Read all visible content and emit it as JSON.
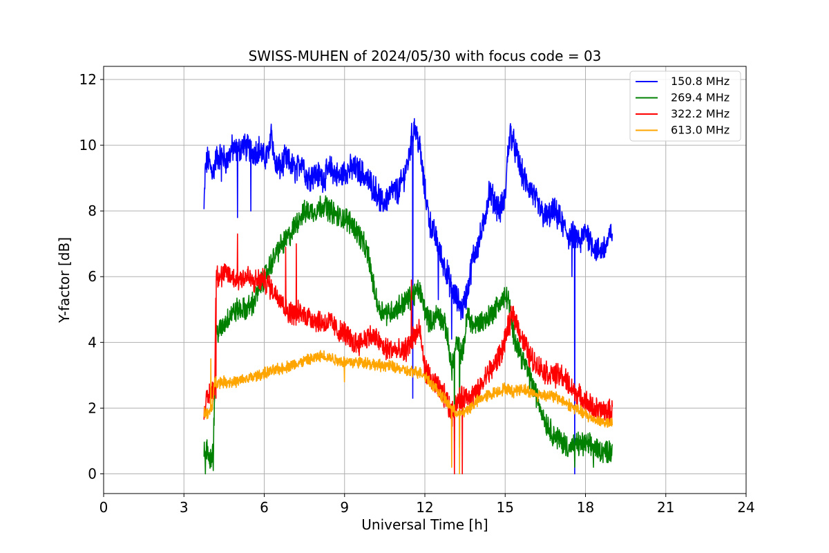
{
  "chart_data": {
    "type": "line",
    "title": "SWISS-MUHEN of 2024/05/30 with focus code = 03",
    "xlabel": "Universal Time [h]",
    "ylabel": "Y-factor [dB]",
    "xlim": [
      0,
      24
    ],
    "ylim": [
      -0.6,
      12.4
    ],
    "xticks": [
      0,
      3,
      6,
      9,
      12,
      15,
      18,
      21,
      24
    ],
    "yticks": [
      0,
      2,
      4,
      6,
      8,
      10,
      12
    ],
    "grid": true,
    "legend_position": "top-right",
    "series": [
      {
        "name": "150.8 MHz",
        "color": "#0000ff",
        "noise": 0.35,
        "x": [
          3.75,
          3.8,
          3.9,
          4.0,
          4.1,
          4.2,
          4.4,
          4.6,
          4.8,
          5.0,
          5.2,
          5.4,
          5.6,
          5.8,
          6.0,
          6.2,
          6.25,
          6.4,
          6.6,
          6.8,
          7.0,
          7.2,
          7.4,
          7.6,
          7.8,
          8.0,
          8.2,
          8.5,
          8.8,
          9.0,
          9.3,
          9.6,
          9.9,
          10.2,
          10.4,
          10.6,
          10.8,
          11.0,
          11.2,
          11.4,
          11.5,
          11.6,
          11.8,
          12.0,
          12.2,
          12.4,
          12.6,
          12.8,
          13.0,
          13.2,
          13.4,
          13.6,
          13.8,
          14.0,
          14.2,
          14.4,
          14.6,
          14.8,
          15.0,
          15.1,
          15.2,
          15.4,
          15.6,
          15.8,
          16.0,
          16.2,
          16.4,
          16.6,
          16.8,
          17.0,
          17.2,
          17.4,
          17.6,
          17.8,
          18.0,
          18.2,
          18.4,
          18.6,
          18.8,
          19.0
        ],
        "values": [
          8.0,
          9.3,
          9.6,
          9.3,
          9.2,
          9.6,
          9.7,
          9.5,
          9.9,
          9.8,
          10.0,
          9.9,
          9.8,
          9.9,
          9.6,
          9.8,
          10.6,
          9.4,
          9.3,
          9.6,
          9.4,
          9.2,
          9.6,
          9.0,
          9.1,
          9.1,
          9.0,
          9.3,
          9.0,
          9.2,
          9.3,
          9.2,
          8.9,
          8.6,
          8.2,
          8.4,
          8.6,
          8.6,
          9.0,
          9.6,
          10.2,
          10.6,
          10.0,
          8.6,
          7.6,
          7.2,
          6.6,
          6.2,
          5.6,
          5.3,
          5.0,
          5.6,
          6.6,
          7.0,
          7.6,
          8.6,
          8.3,
          8.0,
          8.4,
          9.8,
          10.4,
          9.8,
          9.2,
          8.8,
          8.6,
          8.2,
          7.9,
          7.8,
          8.0,
          7.8,
          7.5,
          7.2,
          7.3,
          7.0,
          7.4,
          7.1,
          6.8,
          6.8,
          7.0,
          7.4
        ],
        "dips": [
          [
            4.4,
            8.9
          ],
          [
            5.0,
            7.8
          ],
          [
            5.5,
            8.0
          ],
          [
            11.55,
            2.3
          ],
          [
            12.5,
            5.3
          ],
          [
            13.0,
            4.1
          ],
          [
            17.6,
            0.0
          ],
          [
            17.5,
            6.0
          ]
        ]
      },
      {
        "name": "269.4 MHz",
        "color": "#008000",
        "noise": 0.3,
        "x": [
          3.75,
          3.85,
          4.0,
          4.1,
          4.2,
          4.4,
          4.6,
          4.8,
          5.0,
          5.3,
          5.6,
          5.9,
          6.2,
          6.5,
          6.8,
          7.0,
          7.3,
          7.6,
          7.9,
          8.2,
          8.5,
          8.8,
          9.0,
          9.3,
          9.6,
          9.9,
          10.1,
          10.3,
          10.6,
          10.9,
          11.2,
          11.5,
          11.8,
          12.0,
          12.2,
          12.5,
          12.8,
          13.0,
          13.2,
          13.4,
          13.6,
          13.8,
          14.0,
          14.3,
          14.6,
          14.9,
          15.1,
          15.3,
          15.6,
          15.9,
          16.2,
          16.5,
          16.8,
          17.1,
          17.4,
          17.7,
          18.0,
          18.3,
          18.6,
          19.0
        ],
        "values": [
          0.6,
          0.7,
          0.5,
          0.8,
          4.3,
          4.4,
          4.7,
          4.9,
          5.0,
          5.0,
          5.2,
          5.8,
          6.3,
          6.8,
          7.1,
          7.3,
          7.8,
          8.0,
          8.0,
          8.2,
          8.0,
          7.8,
          7.8,
          7.6,
          7.2,
          6.6,
          5.6,
          5.0,
          4.9,
          5.0,
          5.2,
          5.4,
          5.6,
          5.0,
          4.6,
          4.9,
          4.4,
          3.2,
          4.0,
          3.6,
          4.9,
          4.5,
          4.6,
          4.7,
          5.0,
          5.3,
          5.4,
          4.3,
          3.6,
          3.0,
          2.3,
          1.6,
          1.2,
          1.0,
          0.8,
          0.9,
          0.9,
          0.8,
          0.7,
          0.7
        ],
        "dips": [
          [
            3.8,
            0.0
          ],
          [
            4.1,
            0.1
          ],
          [
            13.1,
            1.0
          ],
          [
            13.3,
            0.8
          ],
          [
            17.6,
            0.2
          ],
          [
            18.3,
            0.2
          ]
        ]
      },
      {
        "name": "322.2 MHz",
        "color": "#ff0000",
        "noise": 0.3,
        "x": [
          3.75,
          3.85,
          4.0,
          4.15,
          4.2,
          4.4,
          4.6,
          4.8,
          5.0,
          5.2,
          5.4,
          5.6,
          5.8,
          6.0,
          6.2,
          6.4,
          6.6,
          6.8,
          7.0,
          7.3,
          7.6,
          7.9,
          8.2,
          8.5,
          8.8,
          9.0,
          9.3,
          9.6,
          9.9,
          10.2,
          10.5,
          10.8,
          11.0,
          11.2,
          11.4,
          11.6,
          11.8,
          12.0,
          12.2,
          12.5,
          12.8,
          13.0,
          13.2,
          13.4,
          13.6,
          13.8,
          14.0,
          14.3,
          14.6,
          14.9,
          15.1,
          15.3,
          15.6,
          15.9,
          16.2,
          16.5,
          16.8,
          17.1,
          17.4,
          17.7,
          18.0,
          18.3,
          18.6,
          19.0
        ],
        "values": [
          2.0,
          2.2,
          2.5,
          2.6,
          6.1,
          6.0,
          6.1,
          6.0,
          5.9,
          6.0,
          6.0,
          5.8,
          5.9,
          5.9,
          5.7,
          5.5,
          5.4,
          5.0,
          4.9,
          4.9,
          4.8,
          4.7,
          4.6,
          4.6,
          4.3,
          4.3,
          4.0,
          4.0,
          4.2,
          4.1,
          3.8,
          3.8,
          3.7,
          3.7,
          3.9,
          4.2,
          4.4,
          3.2,
          2.9,
          2.6,
          2.3,
          1.8,
          2.2,
          2.3,
          2.4,
          2.4,
          2.5,
          3.0,
          3.3,
          3.8,
          4.4,
          4.9,
          4.2,
          3.6,
          3.3,
          3.1,
          3.0,
          3.0,
          2.7,
          2.4,
          2.2,
          2.0,
          1.9,
          1.9
        ],
        "dips": [
          [
            4.2,
            2.3
          ],
          [
            5.0,
            7.3
          ],
          [
            6.8,
            6.9
          ],
          [
            7.2,
            7.0
          ],
          [
            11.5,
            5.9
          ],
          [
            13.1,
            0.0
          ],
          [
            13.4,
            0.0
          ]
        ]
      },
      {
        "name": "613.0 MHz",
        "color": "#ffa500",
        "noise": 0.15,
        "x": [
          3.75,
          3.9,
          4.05,
          4.15,
          4.3,
          4.6,
          5.0,
          5.4,
          5.8,
          6.2,
          6.6,
          7.0,
          7.4,
          7.8,
          8.2,
          8.6,
          9.0,
          9.4,
          9.8,
          10.2,
          10.6,
          11.0,
          11.4,
          11.8,
          12.0,
          12.3,
          12.6,
          12.9,
          13.1,
          13.3,
          13.5,
          13.8,
          14.1,
          14.4,
          14.7,
          15.0,
          15.3,
          15.6,
          15.9,
          16.2,
          16.6,
          17.0,
          17.4,
          17.8,
          18.2,
          18.6,
          19.0
        ],
        "values": [
          1.9,
          1.8,
          2.0,
          2.8,
          2.8,
          2.8,
          2.8,
          2.9,
          3.0,
          3.1,
          3.2,
          3.3,
          3.4,
          3.5,
          3.6,
          3.5,
          3.4,
          3.4,
          3.4,
          3.3,
          3.3,
          3.2,
          3.1,
          3.1,
          3.0,
          2.7,
          2.4,
          2.1,
          1.9,
          1.8,
          1.9,
          2.1,
          2.3,
          2.4,
          2.5,
          2.6,
          2.5,
          2.6,
          2.5,
          2.4,
          2.4,
          2.3,
          2.1,
          1.9,
          1.7,
          1.6,
          1.5
        ],
        "dips": [
          [
            4.0,
            3.5
          ],
          [
            9.0,
            2.8
          ],
          [
            13.0,
            0.2
          ],
          [
            13.3,
            0.0
          ]
        ]
      }
    ]
  }
}
